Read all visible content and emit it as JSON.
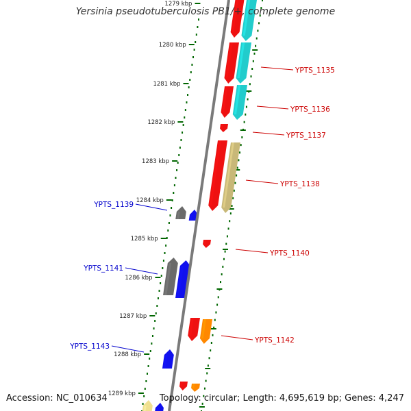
{
  "header": {
    "title": "Yersinia pseudotuberculosis PB1/+, complete genome"
  },
  "footer": {
    "accession": "Accession: NC_010634",
    "topology": "Topology: circular; Length: 4,695,619 bp; Genes: 4,247"
  },
  "scale": {
    "ticks": [
      "1279 kbp",
      "1280 kbp",
      "1281 kbp",
      "1282 kbp",
      "1283 kbp",
      "1284 kbp",
      "1285 kbp",
      "1286 kbp",
      "1287 kbp",
      "1288 kbp",
      "1289 kbp"
    ]
  },
  "colors": {
    "red": "#ee1111",
    "cyan": "#22cccc",
    "khaki": "#c8b878",
    "blue": "#1111ee",
    "gray": "#6a6a6a",
    "orange": "#ff8800",
    "paleyellow": "#f0e090",
    "label_red": "#cc0000",
    "label_blue": "#0000cc",
    "tick_green": "#006600"
  },
  "gene_labels": [
    {
      "id": "YPTS_1135",
      "side": "right"
    },
    {
      "id": "YPTS_1136",
      "side": "right"
    },
    {
      "id": "YPTS_1137",
      "side": "right"
    },
    {
      "id": "YPTS_1138",
      "side": "right"
    },
    {
      "id": "YPTS_1139",
      "side": "left"
    },
    {
      "id": "YPTS_1140",
      "side": "right"
    },
    {
      "id": "YPTS_1141",
      "side": "left"
    },
    {
      "id": "YPTS_1142",
      "side": "right"
    },
    {
      "id": "YPTS_1143",
      "side": "left"
    }
  ]
}
